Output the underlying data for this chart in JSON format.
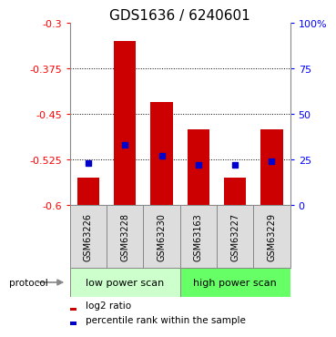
{
  "title": "GDS1636 / 6240601",
  "samples": [
    "GSM63226",
    "GSM63228",
    "GSM63230",
    "GSM63163",
    "GSM63227",
    "GSM63229"
  ],
  "log2_ratio": [
    -0.555,
    -0.33,
    -0.43,
    -0.475,
    -0.555,
    -0.475
  ],
  "percentile_rank": [
    23,
    33,
    27,
    22,
    22,
    24
  ],
  "bar_color": "#cc0000",
  "marker_color": "#0000cc",
  "ymin": -0.6,
  "ymax": -0.3,
  "yticks": [
    -0.3,
    -0.375,
    -0.45,
    -0.525,
    -0.6
  ],
  "ytick_labels": [
    "-0.3",
    "-0.375",
    "-0.45",
    "-0.525",
    "-0.6"
  ],
  "right_yticks": [
    0,
    25,
    50,
    75,
    100
  ],
  "right_ytick_labels": [
    "0",
    "25",
    "50",
    "75",
    "100%"
  ],
  "protocol_groups": [
    {
      "label": "low power scan",
      "indices": [
        0,
        1,
        2
      ],
      "color": "#ccffcc"
    },
    {
      "label": "high power scan",
      "indices": [
        3,
        4,
        5
      ],
      "color": "#66ff66"
    }
  ],
  "bar_bottom": -0.6,
  "bar_width": 0.6,
  "marker_size": 5,
  "grid_linestyle": "dotted",
  "plot_bg_color": "#ffffff",
  "title_fontsize": 11,
  "tick_fontsize": 8,
  "sample_box_color": "#dddddd",
  "sample_box_border": "#888888"
}
